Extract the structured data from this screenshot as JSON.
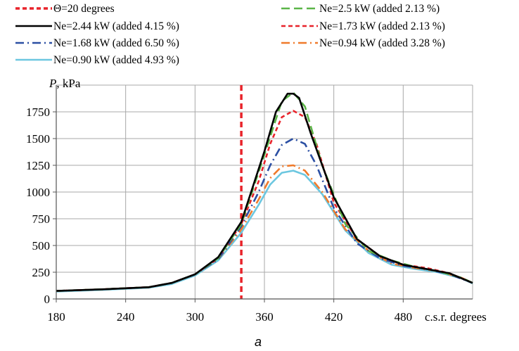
{
  "chart_data": {
    "type": "line",
    "title": "",
    "xlabel": "c.s.r. degrees",
    "ylabel": "P, kPa",
    "ylabel_italic": "P",
    "ylabel_unit": ", kPa",
    "xlim": [
      180,
      540
    ],
    "ylim": [
      0,
      2000
    ],
    "x_ticks": [
      180,
      240,
      300,
      360,
      420,
      480
    ],
    "y_ticks": [
      0,
      250,
      500,
      750,
      1000,
      1250,
      1500,
      1750
    ],
    "grid": true,
    "legend_position": "top",
    "caption": "a",
    "vertical_marker": {
      "name": "Θ=20 degrees",
      "x": 340,
      "color": "#e8232a"
    },
    "series": [
      {
        "name": "Ne=2.5 kW (added 2.13 %)",
        "color": "#5bb548",
        "style": "dashed",
        "x": [
          180,
          220,
          260,
          280,
          300,
          320,
          340,
          360,
          375,
          385,
          395,
          410,
          430,
          450,
          470,
          490,
          510,
          530,
          540
        ],
        "y": [
          75,
          90,
          110,
          150,
          230,
          380,
          700,
          1350,
          1850,
          1930,
          1800,
          1250,
          700,
          450,
          360,
          300,
          260,
          200,
          150
        ]
      },
      {
        "name": "Ne=2.44 kW (added 4.15 %)",
        "color": "#000000",
        "style": "solid",
        "x": [
          180,
          220,
          260,
          280,
          300,
          320,
          340,
          360,
          370,
          380,
          385,
          390,
          400,
          420,
          440,
          460,
          480,
          500,
          520,
          540
        ],
        "y": [
          75,
          90,
          110,
          150,
          230,
          390,
          720,
          1380,
          1750,
          1920,
          1920,
          1880,
          1550,
          950,
          560,
          400,
          320,
          280,
          240,
          150
        ]
      },
      {
        "name": "Ne=1.73 kW (added 2.13 %)",
        "color": "#e8232a",
        "style": "short-dash",
        "x": [
          180,
          220,
          260,
          280,
          300,
          320,
          340,
          355,
          365,
          375,
          385,
          395,
          405,
          420,
          440,
          460,
          480,
          500,
          520,
          540
        ],
        "y": [
          75,
          90,
          110,
          150,
          230,
          380,
          700,
          1100,
          1450,
          1700,
          1760,
          1700,
          1450,
          900,
          560,
          400,
          320,
          290,
          240,
          150
        ]
      },
      {
        "name": "Ne=1.68 kW (added 6.50 %)",
        "color": "#2b4fa3",
        "style": "dash-dot",
        "x": [
          180,
          220,
          260,
          280,
          300,
          320,
          340,
          355,
          365,
          375,
          385,
          395,
          405,
          420,
          440,
          460,
          480,
          500,
          520,
          540
        ],
        "y": [
          75,
          90,
          110,
          150,
          230,
          370,
          680,
          1000,
          1250,
          1440,
          1500,
          1450,
          1250,
          850,
          520,
          380,
          310,
          280,
          230,
          150
        ]
      },
      {
        "name": "Ne=0.94 kW (added 3.28 %)",
        "color": "#ef7a2b",
        "style": "dash-dot",
        "x": [
          180,
          220,
          260,
          280,
          300,
          320,
          340,
          355,
          365,
          375,
          385,
          395,
          410,
          430,
          450,
          470,
          490,
          510,
          530,
          540
        ],
        "y": [
          75,
          90,
          110,
          150,
          230,
          370,
          650,
          930,
          1130,
          1240,
          1250,
          1200,
          1000,
          650,
          450,
          330,
          290,
          260,
          200,
          150
        ]
      },
      {
        "name": "Ne=0.90 kW (added 4.93 %)",
        "color": "#6cc7e0",
        "style": "solid",
        "x": [
          180,
          220,
          260,
          280,
          300,
          320,
          340,
          355,
          365,
          375,
          385,
          395,
          410,
          430,
          450,
          470,
          490,
          510,
          530,
          540
        ],
        "y": [
          70,
          85,
          105,
          140,
          220,
          360,
          620,
          880,
          1070,
          1180,
          1200,
          1160,
          980,
          640,
          430,
          320,
          280,
          250,
          195,
          145
        ]
      }
    ]
  }
}
